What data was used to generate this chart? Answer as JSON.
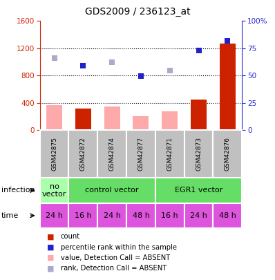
{
  "title": "GDS2009 / 236123_at",
  "samples": [
    "GSM42875",
    "GSM42872",
    "GSM42874",
    "GSM42877",
    "GSM42871",
    "GSM42873",
    "GSM42876"
  ],
  "count_values": [
    0,
    320,
    0,
    0,
    0,
    450,
    1270
  ],
  "count_absent": [
    370,
    0,
    350,
    210,
    280,
    0,
    0
  ],
  "rank_values": [
    0,
    950,
    0,
    790,
    0,
    1170,
    1310
  ],
  "rank_absent": [
    1060,
    0,
    1000,
    0,
    870,
    0,
    0
  ],
  "ylim_left": [
    0,
    1600
  ],
  "ylim_right": [
    0,
    100
  ],
  "yticks_left": [
    0,
    400,
    800,
    1200,
    1600
  ],
  "yticks_right": [
    0,
    25,
    50,
    75,
    100
  ],
  "time_labels": [
    "24 h",
    "16 h",
    "24 h",
    "48 h",
    "16 h",
    "24 h",
    "48 h"
  ],
  "time_color": "#dd55dd",
  "count_color": "#cc2200",
  "count_absent_color": "#ffaaaa",
  "rank_color": "#2222cc",
  "rank_absent_color": "#aaaacc",
  "left_axis_color": "#cc2200",
  "right_axis_color": "#2222cc",
  "bg_color": "#ffffff",
  "inf_no_vector_color": "#aaffaa",
  "inf_cv_color": "#66dd66",
  "inf_egr_color": "#66dd66",
  "gray_sample": "#c0c0c0"
}
